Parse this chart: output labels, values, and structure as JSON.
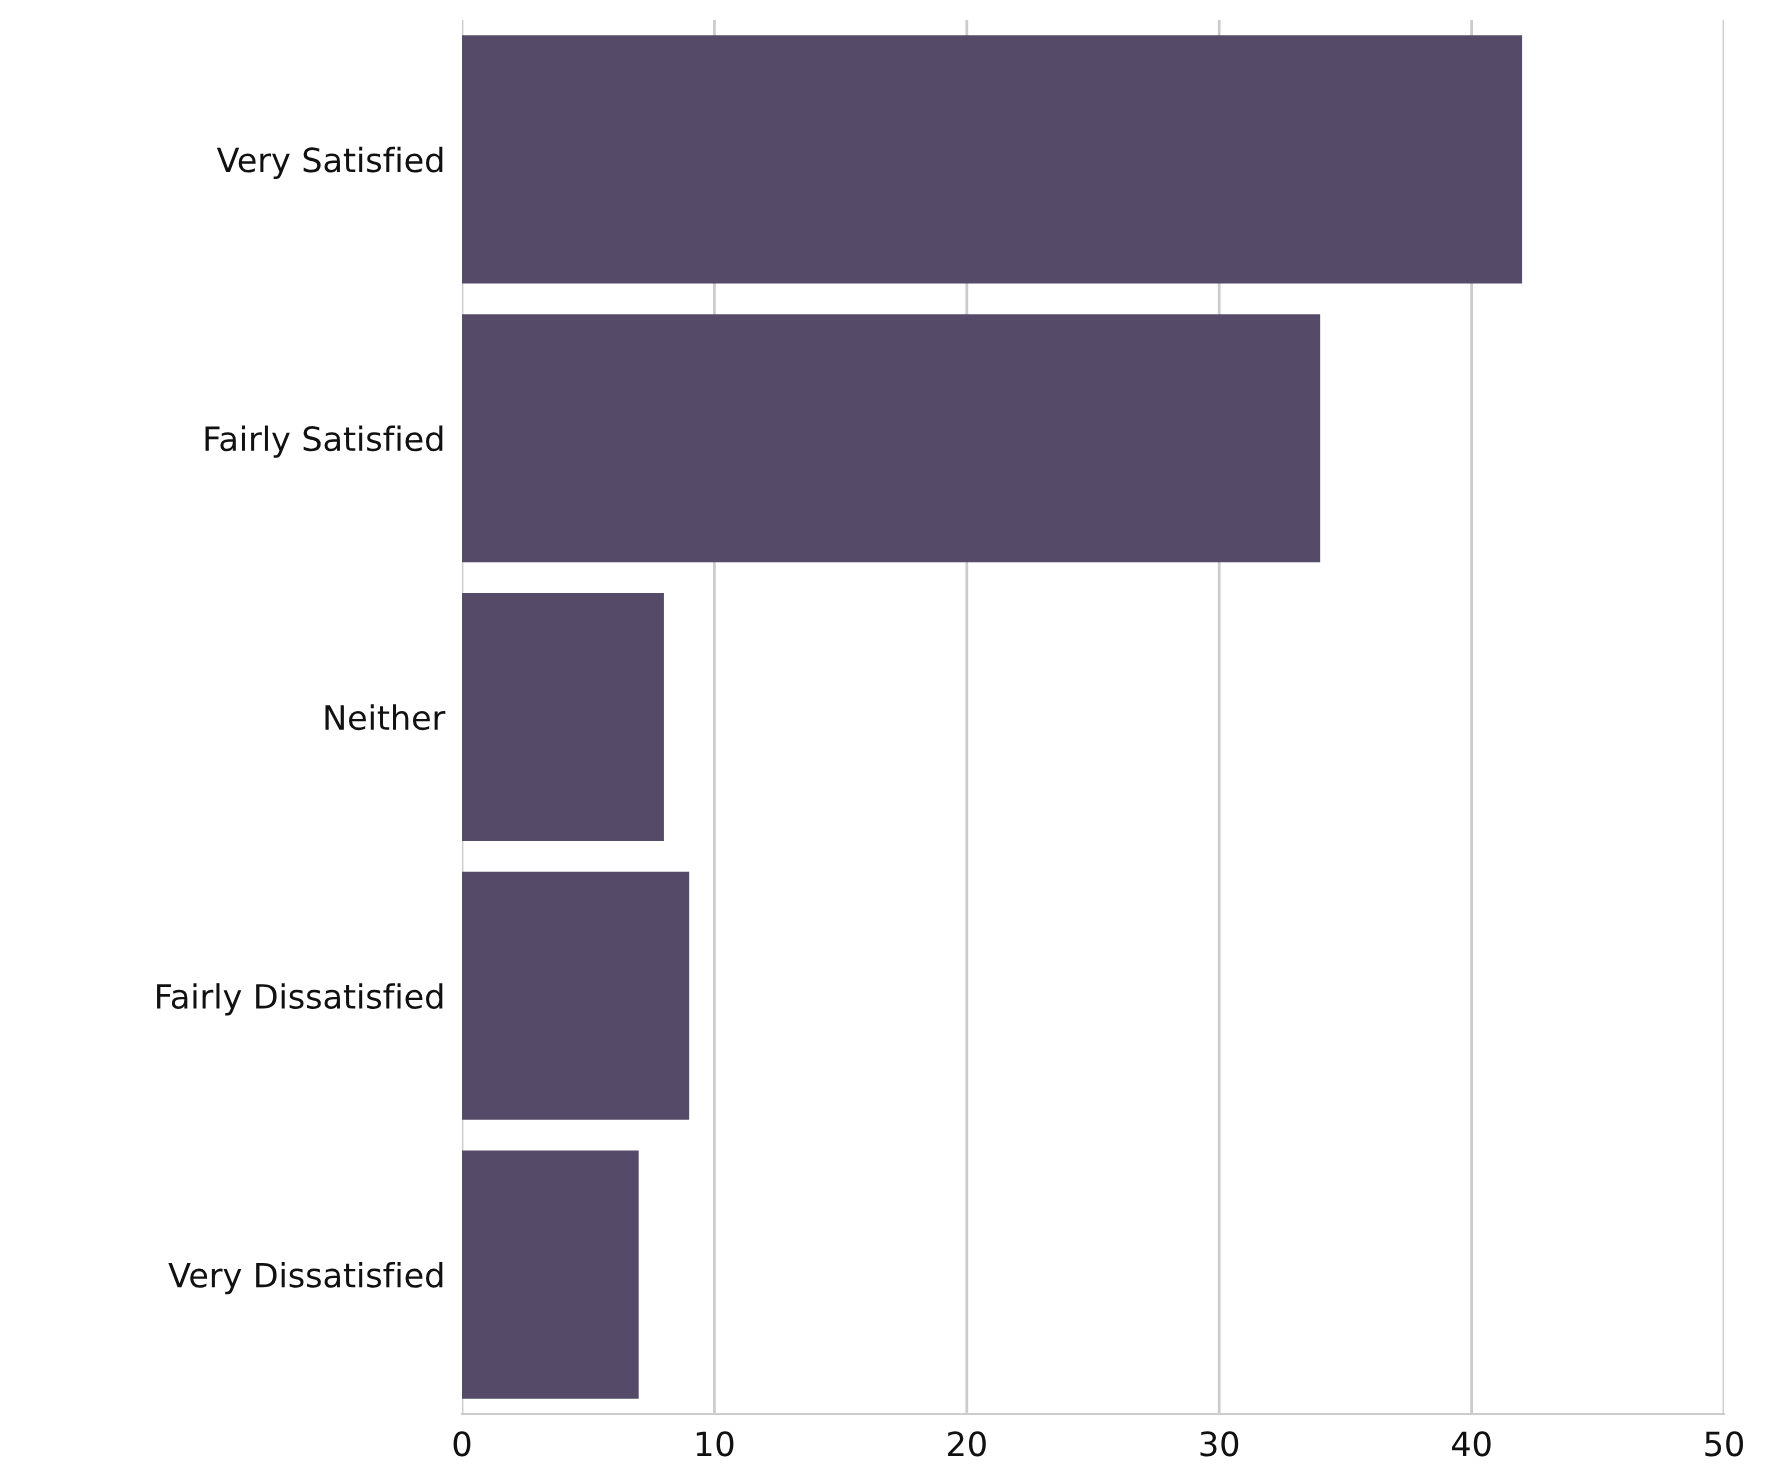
{
  "chart_data": {
    "type": "bar",
    "orientation": "horizontal",
    "categories": [
      "Very Satisfied",
      "Fairly Satisfied",
      "Neither",
      "Fairly Dissatisfied",
      "Very Dissatisfied"
    ],
    "values": [
      42,
      34,
      8,
      9,
      7
    ],
    "color": "#554a68",
    "xlim": [
      0,
      50
    ],
    "xticks": [
      0,
      10,
      20,
      30,
      40,
      50
    ],
    "grid": "x",
    "legend": false
  }
}
